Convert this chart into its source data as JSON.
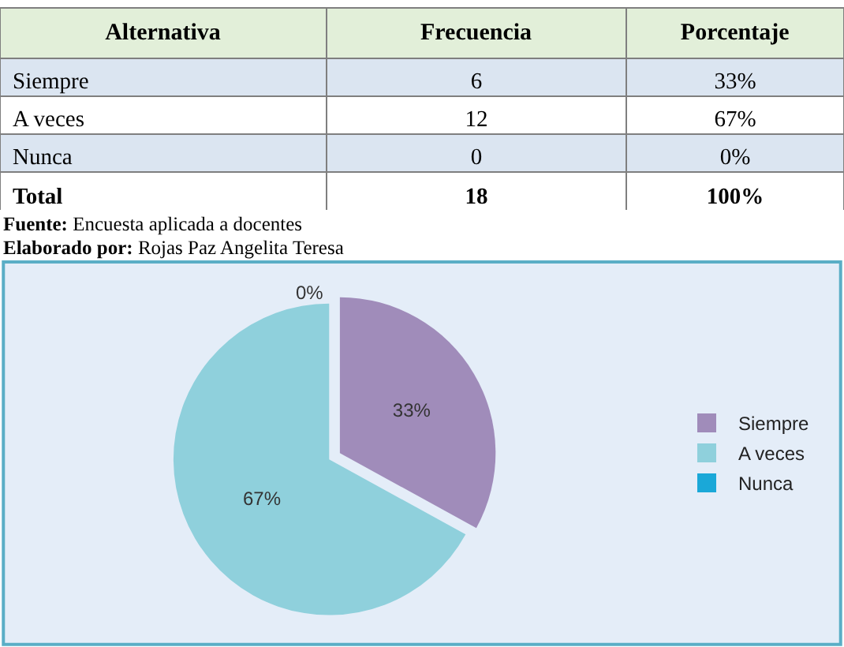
{
  "chart_data": [
    {
      "type": "other",
      "xlabel": "Alternativa",
      "categories": [
        "Siempre",
        "A veces",
        "Nunca",
        "Total"
      ],
      "series": [
        {
          "name": "Frecuencia",
          "values": [
            6,
            12,
            0,
            18
          ],
          "value_labels": [
            "6",
            "12",
            "0",
            "18"
          ],
          "colors": [
            "#dbe5f1",
            "#ffffff",
            "#dbe5f1",
            "#ffffff"
          ]
        },
        {
          "name": "Porcentaje",
          "values": [
            33,
            67,
            0,
            100
          ],
          "value_labels": [
            "33%",
            "67%",
            "0%",
            "100%"
          ],
          "colors": [
            "#dbe5f1",
            "#ffffff",
            "#dbe5f1",
            "#ffffff"
          ]
        }
      ],
      "annotations": [
        "Fuente: Encuesta aplicada a docentes",
        "Elaborado por: Rojas Paz Angelita Teresa"
      ]
    },
    {
      "type": "pie",
      "categories": [
        "Siempre",
        "A veces",
        "Nunca"
      ],
      "values": [
        33,
        67,
        0
      ],
      "colors": [
        "#a08cba",
        "#8fd0dc",
        "#1aa8d8"
      ],
      "value_labels": [
        "33%",
        "67%",
        "0%"
      ],
      "legend": "right"
    }
  ]
}
